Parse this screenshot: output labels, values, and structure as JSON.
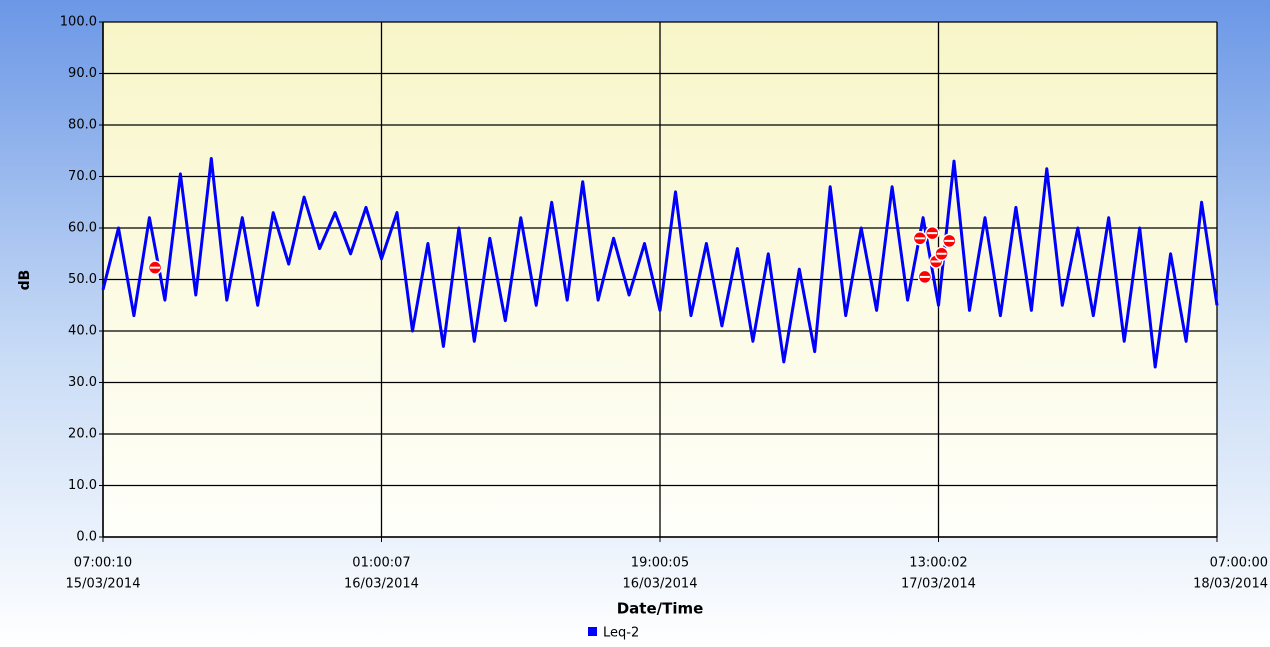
{
  "chart_data": {
    "type": "line",
    "y_label": "dB",
    "x_label": "Date/Time",
    "ylim": [
      0,
      100
    ],
    "yticks": [
      {
        "value": 0,
        "label": "0.0"
      },
      {
        "value": 10,
        "label": "10.0"
      },
      {
        "value": 20,
        "label": "20.0"
      },
      {
        "value": 30,
        "label": "30.0"
      },
      {
        "value": 40,
        "label": "40.0"
      },
      {
        "value": 50,
        "label": "50.0"
      },
      {
        "value": 60,
        "label": "60.0"
      },
      {
        "value": 70,
        "label": "70.0"
      },
      {
        "value": 80,
        "label": "80.0"
      },
      {
        "value": 90,
        "label": "90.0"
      },
      {
        "value": 100,
        "label": "100.0"
      }
    ],
    "xlim": [
      "2014-03-15T07:00:10",
      "2014-03-18T07:00:00"
    ],
    "xticks": [
      {
        "value": "2014-03-15T07:00:10",
        "label": [
          "07:00:10",
          "15/03/2014"
        ]
      },
      {
        "value": "2014-03-16T01:00:07",
        "label": [
          "01:00:07",
          "16/03/2014"
        ]
      },
      {
        "value": "2014-03-16T19:00:05",
        "label": [
          "19:00:05",
          "16/03/2014"
        ]
      },
      {
        "value": "2014-03-17T13:00:02",
        "label": [
          "13:00:02",
          "17/03/2014"
        ]
      },
      {
        "value": "2014-03-18T07:00:00",
        "label": [
          "07:00:00",
          "18/03/2014"
        ]
      }
    ],
    "grid": true,
    "legend": "bottom",
    "x": [
      "2014-03-15T07:00:10",
      "2014-03-15T08:00:10",
      "2014-03-15T09:00:10",
      "2014-03-15T10:00:10",
      "2014-03-15T11:00:10",
      "2014-03-15T12:00:10",
      "2014-03-15T13:00:10",
      "2014-03-15T14:00:10",
      "2014-03-15T15:00:10",
      "2014-03-15T16:00:10",
      "2014-03-15T17:00:10",
      "2014-03-15T18:00:10",
      "2014-03-15T19:00:10",
      "2014-03-15T20:00:10",
      "2014-03-15T21:00:10",
      "2014-03-15T22:00:10",
      "2014-03-15T23:00:10",
      "2014-03-16T00:00:10",
      "2014-03-16T01:00:10",
      "2014-03-16T02:00:10",
      "2014-03-16T03:00:10",
      "2014-03-16T04:00:10",
      "2014-03-16T05:00:10",
      "2014-03-16T06:00:10",
      "2014-03-16T07:00:10",
      "2014-03-16T08:00:10",
      "2014-03-16T09:00:10",
      "2014-03-16T10:00:10",
      "2014-03-16T11:00:10",
      "2014-03-16T12:00:10",
      "2014-03-16T13:00:10",
      "2014-03-16T14:00:10",
      "2014-03-16T15:00:10",
      "2014-03-16T16:00:10",
      "2014-03-16T17:00:10",
      "2014-03-16T18:00:10",
      "2014-03-16T19:00:10",
      "2014-03-16T20:00:10",
      "2014-03-16T21:00:10",
      "2014-03-16T22:00:10",
      "2014-03-16T23:00:10",
      "2014-03-17T00:00:10",
      "2014-03-17T01:00:10",
      "2014-03-17T02:00:10",
      "2014-03-17T03:00:10",
      "2014-03-17T04:00:10",
      "2014-03-17T05:00:10",
      "2014-03-17T06:00:10",
      "2014-03-17T07:00:10",
      "2014-03-17T08:00:10",
      "2014-03-17T09:00:10",
      "2014-03-17T10:00:10",
      "2014-03-17T11:00:10",
      "2014-03-17T12:00:10",
      "2014-03-17T13:00:10",
      "2014-03-17T14:00:10",
      "2014-03-17T15:00:10",
      "2014-03-17T16:00:10",
      "2014-03-17T17:00:10",
      "2014-03-17T18:00:10",
      "2014-03-17T19:00:10",
      "2014-03-17T20:00:10",
      "2014-03-17T21:00:10",
      "2014-03-17T22:00:10",
      "2014-03-17T23:00:10",
      "2014-03-18T00:00:10",
      "2014-03-18T01:00:10",
      "2014-03-18T02:00:10",
      "2014-03-18T03:00:10",
      "2014-03-18T04:00:10",
      "2014-03-18T05:00:10",
      "2014-03-18T06:00:10",
      "2014-03-18T07:00:00"
    ],
    "series": [
      {
        "name": "Leq-2",
        "color": "#0000ff",
        "values": [
          48,
          60,
          43,
          62,
          46,
          70.5,
          47,
          73.5,
          46,
          62,
          45,
          63,
          53,
          66,
          56,
          63,
          55,
          64,
          54,
          63,
          40,
          57,
          37,
          60,
          38,
          58,
          42,
          62,
          45,
          65,
          46,
          69,
          46,
          58,
          47,
          57,
          44,
          67,
          43,
          57,
          41,
          56,
          38,
          55,
          34,
          52,
          36,
          68,
          43,
          60,
          44,
          68,
          46,
          62,
          45,
          73,
          44,
          62,
          43,
          64,
          44,
          71.5,
          45,
          60,
          43,
          62,
          38,
          60,
          33,
          55,
          38,
          65,
          45
        ]
      }
    ],
    "events": {
      "color": "#ff0000",
      "x": [
        "2014-03-15T10:22:00",
        "2014-03-17T11:48:00",
        "2014-03-17T12:07:00",
        "2014-03-17T12:36:00",
        "2014-03-17T12:51:00",
        "2014-03-17T13:12:00",
        "2014-03-17T13:42:00"
      ],
      "values": [
        52.3,
        58,
        50.5,
        59,
        53.5,
        55,
        57.5
      ]
    }
  }
}
